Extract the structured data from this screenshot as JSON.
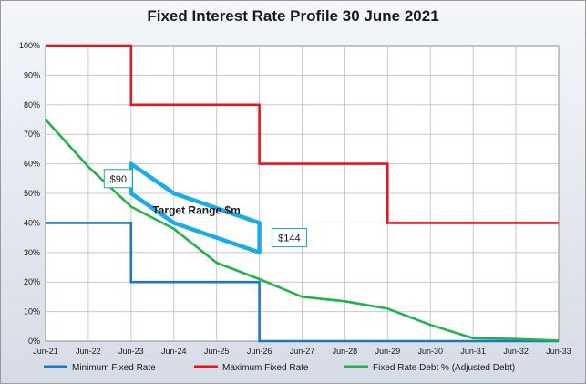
{
  "chart_data": {
    "type": "line",
    "title": "Fixed Interest Rate Profile 30 June 2021",
    "categories": [
      "Jun-21",
      "Jun-22",
      "Jun-23",
      "Jun-24",
      "Jun-25",
      "Jun-26",
      "Jun-27",
      "Jun-28",
      "Jun-29",
      "Jun-30",
      "Jun-31",
      "Jun-32",
      "Jun-33"
    ],
    "y_ticks": [
      "0%",
      "10%",
      "20%",
      "30%",
      "40%",
      "50%",
      "60%",
      "70%",
      "80%",
      "90%",
      "100%"
    ],
    "ylim": [
      0,
      100
    ],
    "grid": true,
    "legend_position": "bottom",
    "series": [
      {
        "name": "Minimum Fixed Rate",
        "color": "#1f77c4",
        "step": true,
        "points": [
          [
            0,
            40
          ],
          [
            2,
            40
          ],
          [
            2,
            20
          ],
          [
            5,
            20
          ],
          [
            5,
            0
          ],
          [
            12,
            0
          ]
        ]
      },
      {
        "name": "Maximum Fixed Rate",
        "color": "#e8161b",
        "step": true,
        "points": [
          [
            0,
            100
          ],
          [
            2,
            100
          ],
          [
            2,
            80
          ],
          [
            5,
            80
          ],
          [
            5,
            60
          ],
          [
            8,
            60
          ],
          [
            8,
            40
          ],
          [
            12,
            40
          ]
        ]
      },
      {
        "name": "Fixed Rate Debt % (Adjusted Debt)",
        "color": "#22b24c",
        "step": false,
        "points": [
          [
            0,
            75
          ],
          [
            1,
            59
          ],
          [
            2,
            45.5
          ],
          [
            3,
            38
          ],
          [
            4,
            26.5
          ],
          [
            5,
            21
          ],
          [
            6,
            15
          ],
          [
            7,
            13.5
          ],
          [
            8,
            11
          ],
          [
            9,
            5.5
          ],
          [
            10,
            1
          ],
          [
            11,
            0.7
          ],
          [
            12,
            0.2
          ]
        ]
      }
    ],
    "target_range": {
      "label": "Target Range $m",
      "color": "#1aace8",
      "upper": [
        [
          2,
          60
        ],
        [
          3,
          50
        ],
        [
          5,
          40
        ]
      ],
      "lower": [
        [
          2,
          50
        ],
        [
          3,
          40
        ],
        [
          5,
          30
        ]
      ],
      "callouts": [
        {
          "text": "$90",
          "x": 1.7,
          "y": 55
        },
        {
          "text": "$144",
          "x": 5.7,
          "y": 35
        }
      ]
    }
  }
}
